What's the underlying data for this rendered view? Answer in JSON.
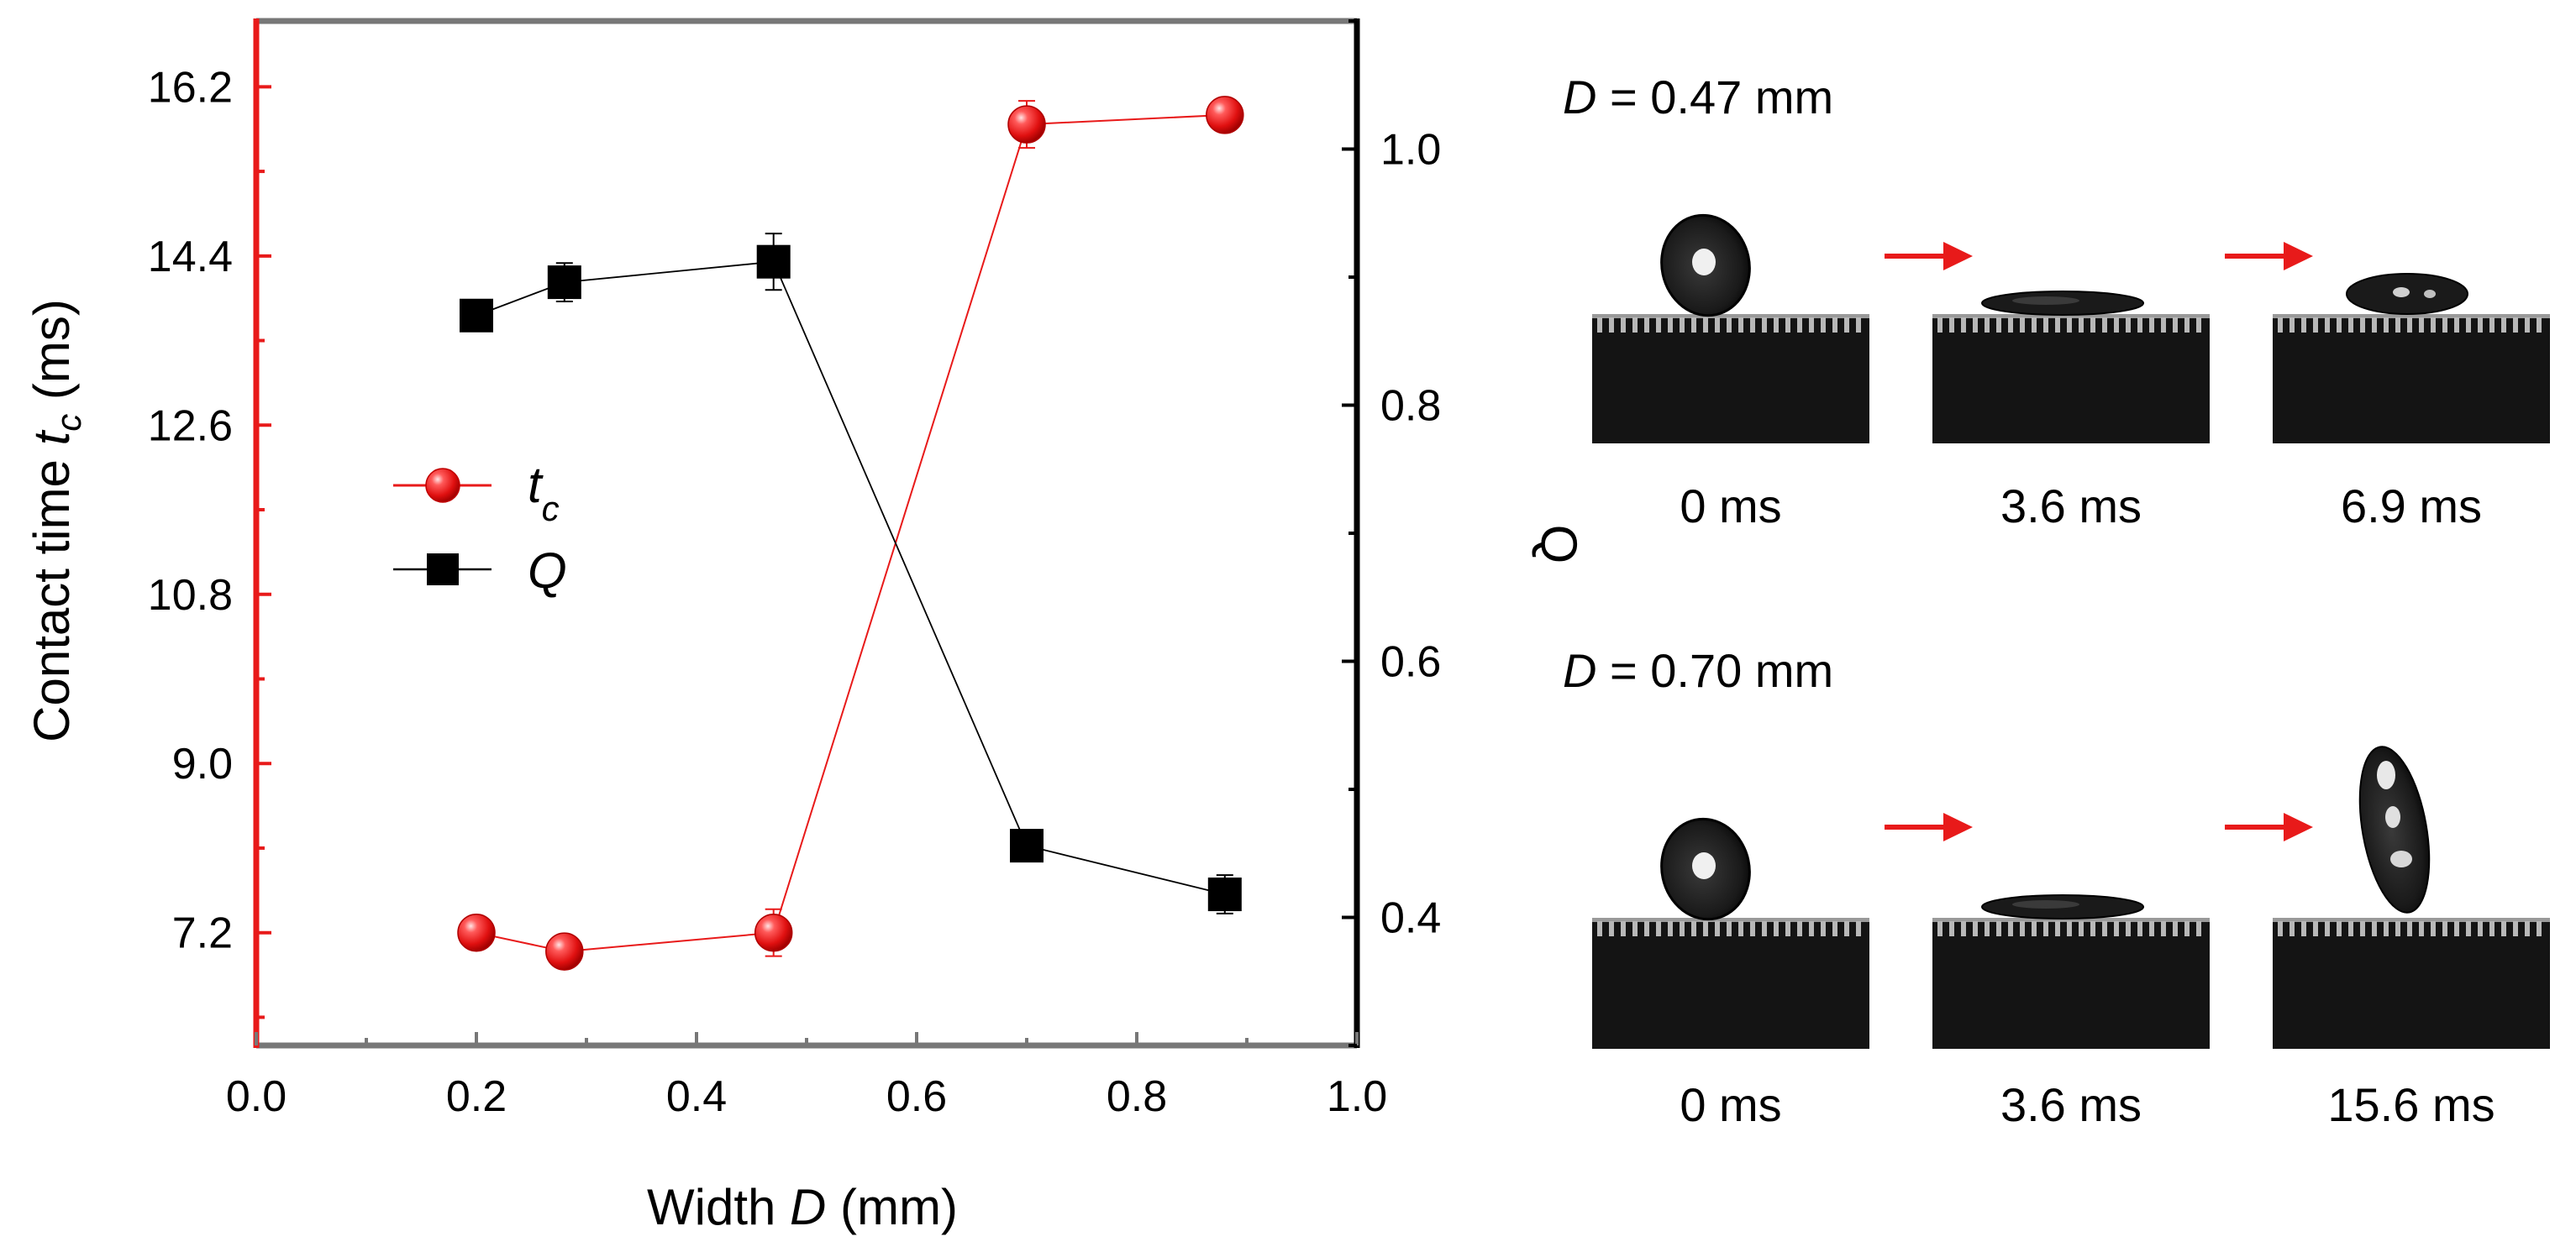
{
  "chart_data": {
    "type": "scatter",
    "xlabel_prefix": "Width ",
    "xlabel_var": "D",
    "xlabel_suffix": " (mm)",
    "ylabel_left_prefix": "Contact time ",
    "ylabel_left_var": "t",
    "ylabel_left_sub": "c",
    "ylabel_left_suffix": " (ms)",
    "ylabel_right": "Q",
    "xlim": [
      0.0,
      1.0
    ],
    "ylim_left": [
      6.0,
      16.9
    ],
    "ylim_right": [
      0.3,
      1.1
    ],
    "x_ticks": [
      "0.0",
      "0.2",
      "0.4",
      "0.6",
      "0.8",
      "1.0"
    ],
    "y_left_ticks": [
      "7.2",
      "9.0",
      "10.8",
      "12.6",
      "14.4",
      "16.2"
    ],
    "y_right_ticks": [
      "0.4",
      "0.6",
      "0.8",
      "1.0"
    ],
    "legend_position": "center-left",
    "colors": {
      "tc": "#e81a1a",
      "Q": "#000000",
      "left_axis": "#e81a1a",
      "right_axis": "#000000"
    },
    "series": [
      {
        "name_var": "t",
        "name_sub": "c",
        "axis": "left",
        "marker": "sphere",
        "x": [
          0.2,
          0.28,
          0.47,
          0.7,
          0.88
        ],
        "y": [
          7.2,
          7.0,
          7.2,
          15.8,
          15.9
        ],
        "err": [
          0.05,
          0.05,
          0.25,
          0.25,
          0.12
        ]
      },
      {
        "name_var": "Q",
        "axis": "right",
        "marker": "square",
        "x": [
          0.2,
          0.28,
          0.47,
          0.7,
          0.88
        ],
        "y": [
          0.87,
          0.896,
          0.912,
          0.456,
          0.418
        ],
        "err": [
          0.0,
          0.015,
          0.022,
          0.01,
          0.015
        ]
      }
    ]
  },
  "image_panels": [
    {
      "label_var": "D",
      "label_value": " = 0.47 mm",
      "frames": [
        {
          "time": "0 ms",
          "shape": "ball"
        },
        {
          "time": "3.6 ms",
          "shape": "spread"
        },
        {
          "time": "6.9 ms",
          "shape": "retract"
        }
      ]
    },
    {
      "label_var": "D",
      "label_value": " = 0.70 mm",
      "frames": [
        {
          "time": "0 ms",
          "shape": "ball"
        },
        {
          "time": "3.6 ms",
          "shape": "spread"
        },
        {
          "time": "15.6 ms",
          "shape": "jump"
        }
      ]
    }
  ]
}
